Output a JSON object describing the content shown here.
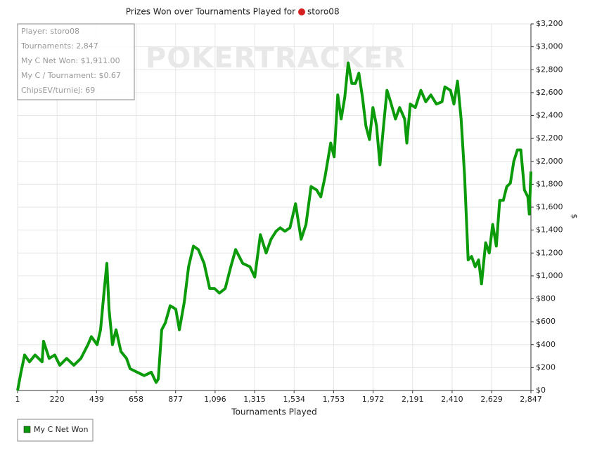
{
  "chart_data": {
    "type": "line",
    "title": "Prizes Won over Tournaments Played for",
    "player": "storo08",
    "watermark": "POKERTRACKER",
    "info": [
      "Player: storo08",
      "Tournaments: 2,847",
      "My C Net Won: $1,911.00",
      "My C / Tournament: $0.67",
      "ChipsEV/turniej: 69"
    ],
    "x_label": "Tournaments Played",
    "y_label": "$",
    "xlim": [
      1,
      2847
    ],
    "xticks": [
      1,
      220,
      439,
      658,
      877,
      {
        "value": 1096,
        "label": "1,096"
      },
      {
        "value": 1315,
        "label": "1,315"
      },
      {
        "value": 1534,
        "label": "1,534"
      },
      {
        "value": 1753,
        "label": "1,753"
      },
      {
        "value": 1972,
        "label": "1,972"
      },
      {
        "value": 2191,
        "label": "2,191"
      },
      {
        "value": 2410,
        "label": "2,410"
      },
      {
        "value": 2629,
        "label": "2,629"
      },
      {
        "value": 2847,
        "label": "2,847"
      }
    ],
    "ylim": [
      0,
      3200
    ],
    "yticks": [
      {
        "value": 0,
        "label": "$0"
      },
      {
        "value": 200,
        "label": "$200"
      },
      {
        "value": 400,
        "label": "$400"
      },
      {
        "value": 600,
        "label": "$600"
      },
      {
        "value": 800,
        "label": "$800"
      },
      {
        "value": 1000,
        "label": "$1,000"
      },
      {
        "value": 1200,
        "label": "$1,200"
      },
      {
        "value": 1400,
        "label": "$1,400"
      },
      {
        "value": 1600,
        "label": "$1,600"
      },
      {
        "value": 1800,
        "label": "$1,800"
      },
      {
        "value": 2000,
        "label": "$2,000"
      },
      {
        "value": 2200,
        "label": "$2,200"
      },
      {
        "value": 2400,
        "label": "$2,400"
      },
      {
        "value": 2600,
        "label": "$2,600"
      },
      {
        "value": 2800,
        "label": "$2,800"
      },
      {
        "value": 3000,
        "label": "$3,000"
      },
      {
        "value": 3200,
        "label": "$3,200"
      }
    ],
    "grid": true,
    "legend": "bottom-left",
    "x": [
      1,
      20,
      40,
      67,
      98,
      137,
      145,
      176,
      207,
      235,
      273,
      313,
      352,
      391,
      410,
      442,
      461,
      481,
      496,
      508,
      527,
      547,
      574,
      605,
      625,
      664,
      703,
      742,
      769,
      781,
      800,
      820,
      847,
      878,
      898,
      925,
      949,
      976,
      1003,
      1035,
      1066,
      1093,
      1120,
      1152,
      1183,
      1210,
      1249,
      1289,
      1316,
      1347,
      1379,
      1406,
      1434,
      1457,
      1483,
      1511,
      1542,
      1573,
      1600,
      1628,
      1659,
      1682,
      1706,
      1737,
      1756,
      1776,
      1795,
      1815,
      1834,
      1854,
      1874,
      1893,
      1913,
      1932,
      1952,
      1971,
      1991,
      2010,
      2030,
      2049,
      2069,
      2096,
      2119,
      2147,
      2159,
      2178,
      2206,
      2237,
      2264,
      2292,
      2323,
      2354,
      2370,
      2401,
      2420,
      2440,
      2460,
      2479,
      2499,
      2518,
      2538,
      2557,
      2573,
      2596,
      2616,
      2635,
      2655,
      2674,
      2694,
      2713,
      2733,
      2752,
      2772,
      2791,
      2811,
      2830,
      2838,
      2847
    ],
    "series": [
      {
        "name": "My C Net Won",
        "color": "#0a9a0a",
        "values": [
          0,
          160,
          310,
          250,
          310,
          250,
          430,
          280,
          310,
          220,
          280,
          220,
          280,
          400,
          470,
          400,
          530,
          870,
          1110,
          710,
          400,
          530,
          340,
          280,
          190,
          160,
          130,
          160,
          70,
          100,
          530,
          590,
          740,
          710,
          530,
          770,
          1080,
          1260,
          1230,
          1110,
          890,
          890,
          850,
          890,
          1080,
          1230,
          1110,
          1080,
          990,
          1360,
          1200,
          1320,
          1390,
          1420,
          1390,
          1420,
          1630,
          1320,
          1450,
          1780,
          1750,
          1690,
          1870,
          2160,
          2040,
          2580,
          2370,
          2560,
          2860,
          2680,
          2680,
          2770,
          2560,
          2310,
          2190,
          2470,
          2310,
          1970,
          2310,
          2620,
          2520,
          2370,
          2470,
          2370,
          2160,
          2500,
          2470,
          2620,
          2520,
          2580,
          2500,
          2520,
          2650,
          2620,
          2500,
          2700,
          2370,
          1880,
          1140,
          1170,
          1080,
          1140,
          930,
          1290,
          1200,
          1450,
          1260,
          1660,
          1660,
          1780,
          1810,
          2000,
          2100,
          2100,
          1750,
          1690,
          1540,
          1911
        ]
      }
    ]
  }
}
